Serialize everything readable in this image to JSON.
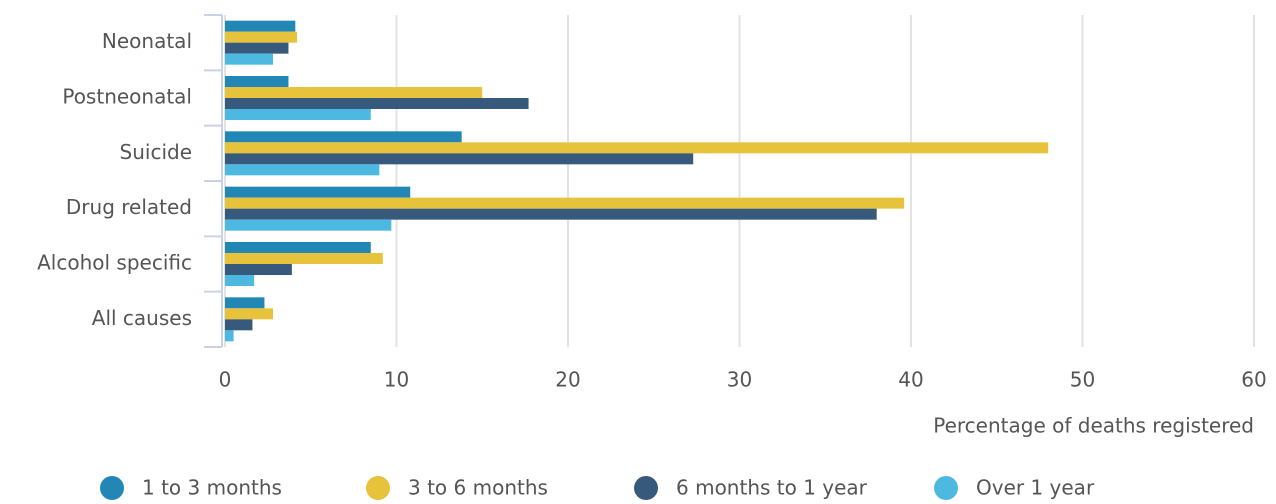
{
  "chart_data": {
    "type": "barh",
    "x_label": "Percentage of deaths registered",
    "categories": [
      "Neonatal",
      "Postneonatal",
      "Suicide",
      "Drug related",
      "Alcohol specific",
      "All causes"
    ],
    "series": [
      {
        "name": "1 to 3 months",
        "color": "#2287b4",
        "values": [
          4.1,
          3.7,
          13.8,
          10.8,
          8.5,
          2.3
        ]
      },
      {
        "name": "3 to 6 months",
        "color": "#e6c33a",
        "values": [
          4.2,
          15.0,
          48.0,
          39.6,
          9.2,
          2.8
        ]
      },
      {
        "name": "6 months to 1 year",
        "color": "#375a7c",
        "values": [
          3.7,
          17.7,
          27.3,
          38.0,
          3.9,
          1.6
        ]
      },
      {
        "name": "Over 1 year",
        "color": "#4db8e0",
        "values": [
          2.8,
          8.5,
          9.0,
          9.7,
          1.7,
          0.5
        ]
      }
    ],
    "xlim": [
      0,
      60
    ],
    "xticks": [
      0,
      10,
      20,
      30,
      40,
      50,
      60
    ],
    "grid": true,
    "legend": "bottom"
  }
}
